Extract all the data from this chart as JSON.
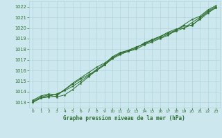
{
  "background_color": "#cce8ee",
  "grid_color": "#b0d4dc",
  "line_color": "#2d6e2d",
  "title": "Graphe pression niveau de la mer (hPa)",
  "xlim": [
    -0.5,
    23.5
  ],
  "ylim": [
    1012.5,
    1022.5
  ],
  "yticks": [
    1013,
    1014,
    1015,
    1016,
    1017,
    1018,
    1019,
    1020,
    1021,
    1022
  ],
  "xticks": [
    0,
    1,
    2,
    3,
    4,
    5,
    6,
    7,
    8,
    9,
    10,
    11,
    12,
    13,
    14,
    15,
    16,
    17,
    18,
    19,
    20,
    21,
    22,
    23
  ],
  "series": [
    [
      1013.2,
      1013.6,
      1013.8,
      1013.7,
      1014.2,
      1014.8,
      1015.3,
      1015.8,
      1016.3,
      1016.7,
      1017.2,
      1017.6,
      1017.8,
      1018.0,
      1018.4,
      1018.7,
      1019.0,
      1019.3,
      1019.8,
      1020.3,
      1020.8,
      1021.1,
      1021.7,
      1022.1
    ],
    [
      1013.1,
      1013.5,
      1013.7,
      1013.5,
      1013.7,
      1014.2,
      1014.8,
      1015.4,
      1016.0,
      1016.5,
      1017.2,
      1017.6,
      1017.9,
      1018.2,
      1018.5,
      1018.8,
      1019.1,
      1019.4,
      1019.7,
      1020.0,
      1020.5,
      1021.0,
      1021.6,
      1022.0
    ],
    [
      1013.0,
      1013.4,
      1013.6,
      1013.8,
      1014.1,
      1014.5,
      1015.0,
      1015.5,
      1016.1,
      1016.6,
      1017.3,
      1017.7,
      1017.9,
      1018.2,
      1018.5,
      1018.9,
      1019.2,
      1019.5,
      1019.8,
      1020.2,
      1020.2,
      1020.9,
      1021.5,
      1021.9
    ],
    [
      1013.0,
      1013.4,
      1013.5,
      1013.6,
      1014.2,
      1014.7,
      1015.2,
      1015.6,
      1016.0,
      1016.5,
      1017.1,
      1017.5,
      1017.8,
      1018.1,
      1018.6,
      1018.9,
      1019.2,
      1019.6,
      1019.9,
      1020.0,
      1020.3,
      1020.8,
      1021.4,
      1021.9
    ]
  ]
}
